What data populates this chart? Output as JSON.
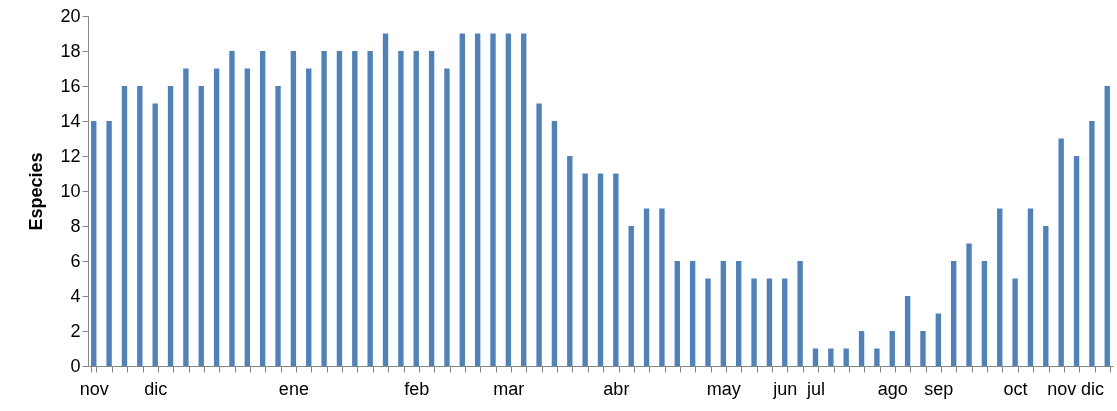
{
  "chart_data": {
    "type": "bar",
    "ylabel": "Especies",
    "color": "#4f81bd",
    "categories": [
      "nov",
      null,
      null,
      null,
      "dic",
      null,
      null,
      null,
      null,
      null,
      null,
      null,
      null,
      "ene",
      null,
      null,
      null,
      null,
      null,
      null,
      null,
      "feb",
      null,
      null,
      null,
      null,
      null,
      "mar",
      null,
      null,
      null,
      null,
      null,
      null,
      "abr",
      null,
      null,
      null,
      null,
      null,
      null,
      "may",
      null,
      null,
      null,
      "jun",
      null,
      "jul",
      null,
      null,
      null,
      null,
      "ago",
      null,
      null,
      "sep",
      null,
      null,
      null,
      null,
      "oct",
      null,
      null,
      "nov",
      null,
      "dic",
      null
    ],
    "values": [
      14,
      14,
      16,
      16,
      15,
      16,
      17,
      16,
      17,
      18,
      17,
      18,
      16,
      18,
      17,
      18,
      18,
      18,
      18,
      19,
      18,
      18,
      18,
      17,
      19,
      19,
      19,
      19,
      19,
      15,
      14,
      12,
      11,
      11,
      11,
      8,
      9,
      9,
      6,
      6,
      5,
      6,
      6,
      5,
      5,
      5,
      6,
      1,
      1,
      1,
      2,
      1,
      2,
      4,
      2,
      3,
      6,
      7,
      6,
      9,
      5,
      9,
      8,
      13,
      12,
      14,
      16
    ],
    "ylim": [
      0,
      20
    ],
    "yticks": [
      0,
      2,
      4,
      6,
      8,
      10,
      12,
      14,
      16,
      18,
      20
    ],
    "grid": false
  }
}
